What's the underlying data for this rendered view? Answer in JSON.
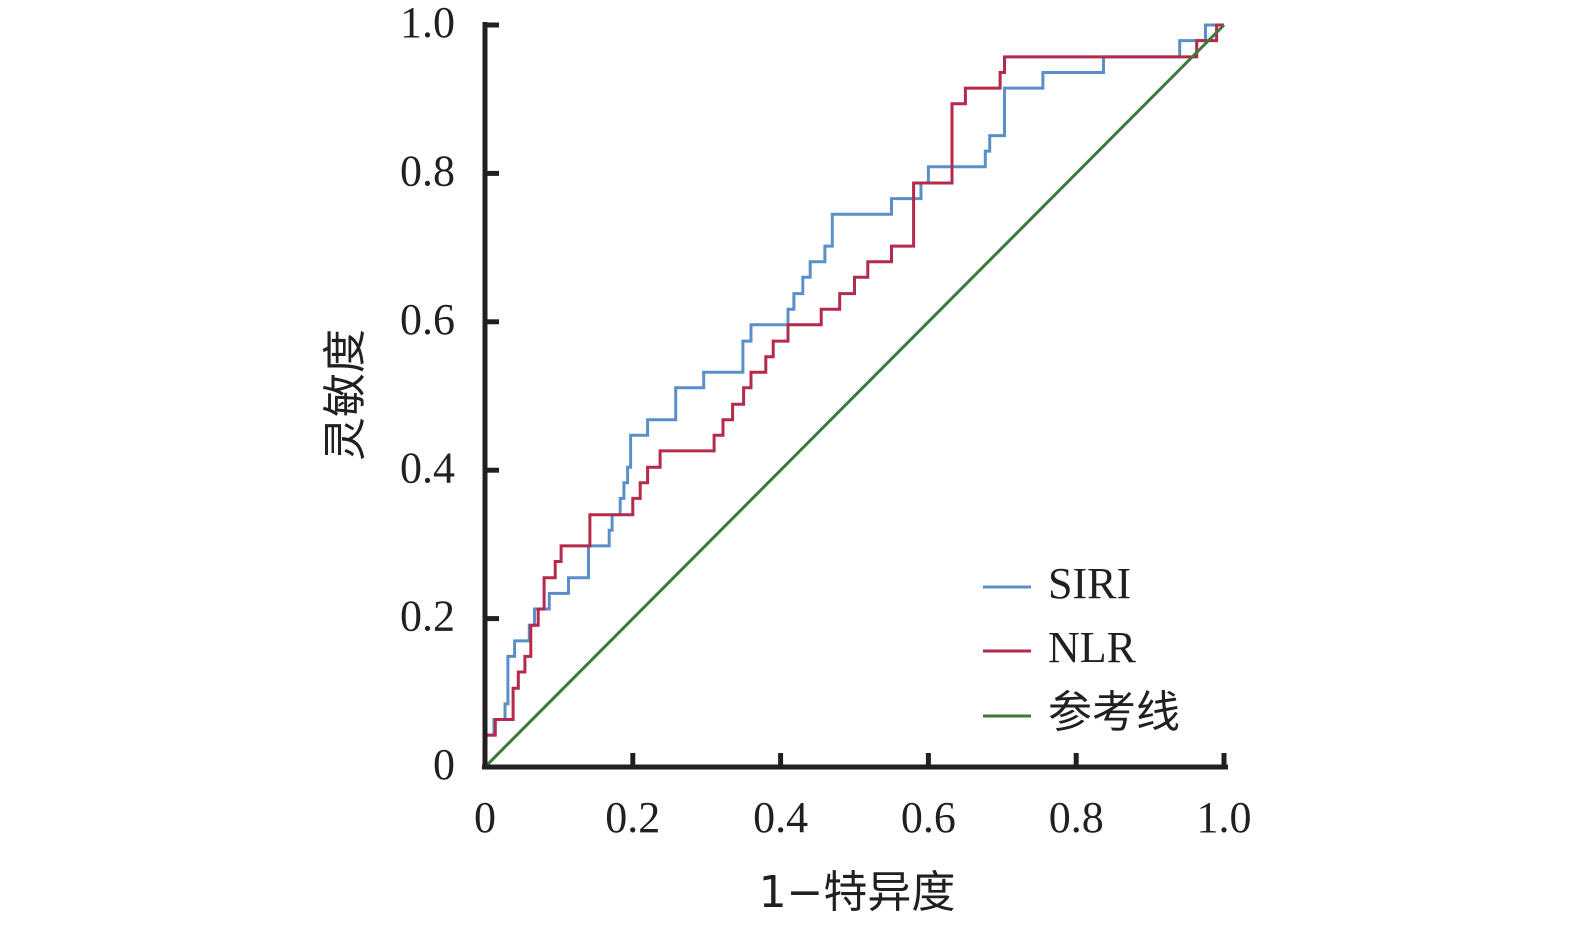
{
  "chart_data": {
    "type": "line",
    "title": "",
    "xlabel": "1−特异度",
    "ylabel": "灵敏度",
    "xlim": [
      0,
      1
    ],
    "ylim": [
      0,
      1
    ],
    "xticks": [
      "0",
      "0.2",
      "0.4",
      "0.6",
      "0.8",
      "1.0"
    ],
    "yticks": [
      "0",
      "0.2",
      "0.4",
      "0.6",
      "0.8",
      "1.0"
    ],
    "grid": false,
    "legend_position": "bottom-right",
    "series": [
      {
        "name": "SIRI",
        "color": "#5b8fc9",
        "points": [
          [
            0,
            0
          ],
          [
            0,
            0.043
          ],
          [
            0.012,
            0.043
          ],
          [
            0.012,
            0.064
          ],
          [
            0.027,
            0.064
          ],
          [
            0.027,
            0.085
          ],
          [
            0.031,
            0.085
          ],
          [
            0.031,
            0.149
          ],
          [
            0.04,
            0.149
          ],
          [
            0.04,
            0.17
          ],
          [
            0.06,
            0.17
          ],
          [
            0.06,
            0.191
          ],
          [
            0.067,
            0.191
          ],
          [
            0.067,
            0.213
          ],
          [
            0.087,
            0.213
          ],
          [
            0.087,
            0.234
          ],
          [
            0.113,
            0.234
          ],
          [
            0.113,
            0.255
          ],
          [
            0.14,
            0.255
          ],
          [
            0.14,
            0.298
          ],
          [
            0.168,
            0.298
          ],
          [
            0.168,
            0.319
          ],
          [
            0.172,
            0.319
          ],
          [
            0.172,
            0.34
          ],
          [
            0.183,
            0.34
          ],
          [
            0.183,
            0.362
          ],
          [
            0.188,
            0.362
          ],
          [
            0.188,
            0.383
          ],
          [
            0.193,
            0.383
          ],
          [
            0.193,
            0.404
          ],
          [
            0.197,
            0.404
          ],
          [
            0.197,
            0.447
          ],
          [
            0.22,
            0.447
          ],
          [
            0.22,
            0.468
          ],
          [
            0.258,
            0.468
          ],
          [
            0.258,
            0.511
          ],
          [
            0.296,
            0.511
          ],
          [
            0.296,
            0.532
          ],
          [
            0.349,
            0.532
          ],
          [
            0.349,
            0.574
          ],
          [
            0.36,
            0.574
          ],
          [
            0.36,
            0.596
          ],
          [
            0.41,
            0.596
          ],
          [
            0.41,
            0.617
          ],
          [
            0.418,
            0.617
          ],
          [
            0.418,
            0.638
          ],
          [
            0.43,
            0.638
          ],
          [
            0.43,
            0.66
          ],
          [
            0.44,
            0.66
          ],
          [
            0.44,
            0.681
          ],
          [
            0.46,
            0.681
          ],
          [
            0.46,
            0.702
          ],
          [
            0.47,
            0.702
          ],
          [
            0.47,
            0.745
          ],
          [
            0.55,
            0.745
          ],
          [
            0.55,
            0.766
          ],
          [
            0.59,
            0.766
          ],
          [
            0.59,
            0.787
          ],
          [
            0.6,
            0.787
          ],
          [
            0.6,
            0.809
          ],
          [
            0.677,
            0.809
          ],
          [
            0.677,
            0.83
          ],
          [
            0.683,
            0.83
          ],
          [
            0.683,
            0.851
          ],
          [
            0.703,
            0.851
          ],
          [
            0.703,
            0.915
          ],
          [
            0.755,
            0.915
          ],
          [
            0.755,
            0.936
          ],
          [
            0.837,
            0.936
          ],
          [
            0.837,
            0.957
          ],
          [
            0.94,
            0.957
          ],
          [
            0.94,
            0.979
          ],
          [
            0.975,
            0.979
          ],
          [
            0.975,
            1
          ],
          [
            1,
            1
          ]
        ]
      },
      {
        "name": "NLR",
        "color": "#b5294a",
        "points": [
          [
            0,
            0
          ],
          [
            0,
            0.043
          ],
          [
            0.014,
            0.043
          ],
          [
            0.014,
            0.064
          ],
          [
            0.038,
            0.064
          ],
          [
            0.038,
            0.106
          ],
          [
            0.045,
            0.106
          ],
          [
            0.045,
            0.128
          ],
          [
            0.054,
            0.128
          ],
          [
            0.054,
            0.149
          ],
          [
            0.062,
            0.149
          ],
          [
            0.062,
            0.191
          ],
          [
            0.072,
            0.191
          ],
          [
            0.072,
            0.213
          ],
          [
            0.08,
            0.213
          ],
          [
            0.08,
            0.255
          ],
          [
            0.095,
            0.255
          ],
          [
            0.095,
            0.277
          ],
          [
            0.103,
            0.277
          ],
          [
            0.103,
            0.298
          ],
          [
            0.142,
            0.298
          ],
          [
            0.142,
            0.34
          ],
          [
            0.2,
            0.34
          ],
          [
            0.2,
            0.362
          ],
          [
            0.21,
            0.362
          ],
          [
            0.21,
            0.383
          ],
          [
            0.22,
            0.383
          ],
          [
            0.22,
            0.404
          ],
          [
            0.237,
            0.404
          ],
          [
            0.237,
            0.426
          ],
          [
            0.31,
            0.426
          ],
          [
            0.31,
            0.447
          ],
          [
            0.322,
            0.447
          ],
          [
            0.322,
            0.468
          ],
          [
            0.335,
            0.468
          ],
          [
            0.335,
            0.489
          ],
          [
            0.35,
            0.489
          ],
          [
            0.35,
            0.511
          ],
          [
            0.36,
            0.511
          ],
          [
            0.36,
            0.532
          ],
          [
            0.38,
            0.532
          ],
          [
            0.38,
            0.553
          ],
          [
            0.39,
            0.553
          ],
          [
            0.39,
            0.574
          ],
          [
            0.41,
            0.574
          ],
          [
            0.41,
            0.596
          ],
          [
            0.455,
            0.596
          ],
          [
            0.455,
            0.617
          ],
          [
            0.48,
            0.617
          ],
          [
            0.48,
            0.638
          ],
          [
            0.5,
            0.638
          ],
          [
            0.5,
            0.66
          ],
          [
            0.518,
            0.66
          ],
          [
            0.518,
            0.681
          ],
          [
            0.55,
            0.681
          ],
          [
            0.55,
            0.702
          ],
          [
            0.58,
            0.702
          ],
          [
            0.58,
            0.787
          ],
          [
            0.632,
            0.787
          ],
          [
            0.632,
            0.894
          ],
          [
            0.65,
            0.894
          ],
          [
            0.65,
            0.915
          ],
          [
            0.697,
            0.915
          ],
          [
            0.697,
            0.936
          ],
          [
            0.703,
            0.936
          ],
          [
            0.703,
            0.957
          ],
          [
            0.963,
            0.957
          ],
          [
            0.963,
            0.979
          ],
          [
            0.99,
            0.979
          ],
          [
            0.99,
            1
          ],
          [
            1,
            1
          ]
        ]
      },
      {
        "name": "参考线",
        "color": "#3a7a3a",
        "points": [
          [
            0,
            0
          ],
          [
            1,
            1
          ]
        ]
      }
    ]
  }
}
